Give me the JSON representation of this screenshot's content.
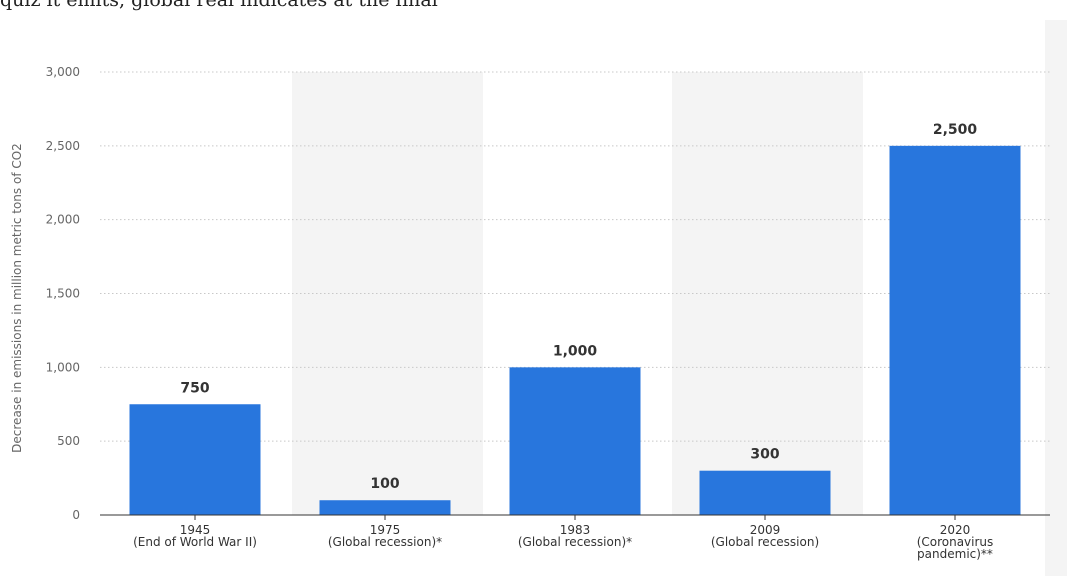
{
  "header": {
    "cropped_text": "quiz it emits, global real indicates at the final"
  },
  "chart_data": {
    "type": "bar",
    "title": "",
    "xlabel": "",
    "ylabel": "Decrease in emissions in million metric tons of CO2",
    "ylim": [
      0,
      3000
    ],
    "yticks": [
      0,
      500,
      1000,
      1500,
      2000,
      2500,
      3000
    ],
    "ytick_labels": [
      "0",
      "500",
      "1,000",
      "1,500",
      "2,000",
      "2,500",
      "3,000"
    ],
    "categories": [
      [
        "1945",
        "(End of World War II)"
      ],
      [
        "1975",
        "(Global recession)*"
      ],
      [
        "1983",
        "(Global recession)*"
      ],
      [
        "2009",
        "(Global recession)"
      ],
      [
        "2020",
        "(Coronavirus",
        "pandemic)**"
      ]
    ],
    "values": [
      750,
      100,
      1000,
      300,
      2500
    ],
    "value_labels": [
      "750",
      "100",
      "1,000",
      "300",
      "2,500"
    ],
    "bar_color": "#2876dd",
    "shaded_bands": "alternating categories (2nd and 4th)",
    "grid": "horizontal dotted",
    "legend": "none"
  }
}
